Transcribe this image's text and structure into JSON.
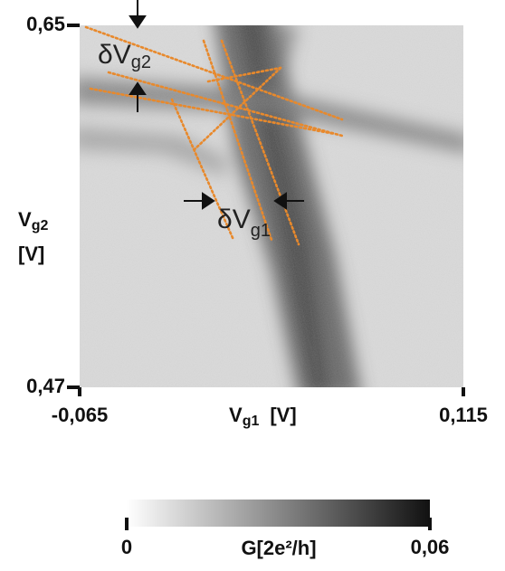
{
  "chart_data": {
    "type": "heatmap",
    "xlabel": {
      "main": "V",
      "sub": "g1",
      "unit": "[V]"
    },
    "ylabel": {
      "main": "V",
      "sub": "g2",
      "unit": "[V]"
    },
    "xlim": [
      -0.065,
      0.115
    ],
    "xticks": [
      {
        "value": -0.065,
        "label": "-0,065"
      },
      {
        "value": 0.115,
        "label": "0,115"
      }
    ],
    "ylim": [
      0.47,
      0.65
    ],
    "yticks": [
      {
        "value": 0.47,
        "label": "0,47"
      },
      {
        "value": 0.65,
        "label": "0,65"
      }
    ],
    "colorbar": {
      "label": "G[2e²/h]",
      "lim": [
        0,
        0.06
      ],
      "ticks": [
        0,
        {
          "value": 0.06,
          "label": "0,06"
        }
      ],
      "colors": [
        "#ffffff",
        "#111111"
      ]
    },
    "annotations": [
      {
        "main": "δV",
        "sub": "g2"
      },
      {
        "main": "δV",
        "sub": "g1"
      }
    ]
  }
}
